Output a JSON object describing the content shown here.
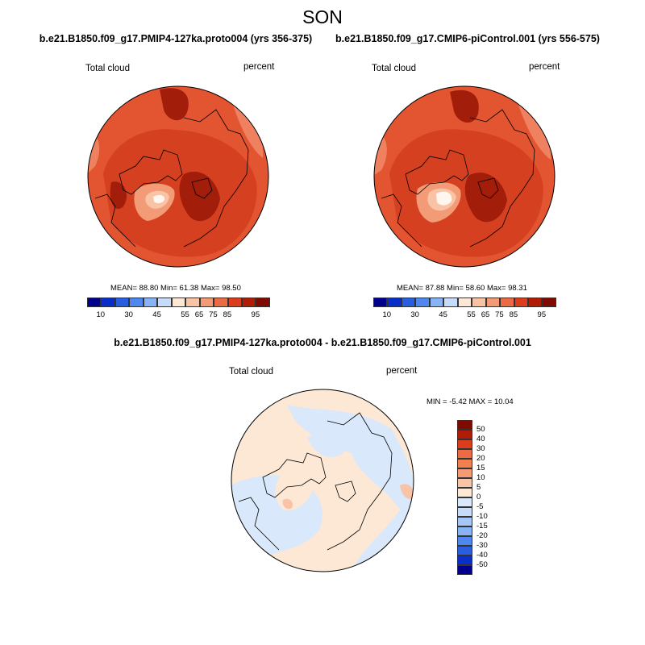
{
  "figure": {
    "season": "SON",
    "var_label": "Total cloud",
    "units": "percent"
  },
  "panel_left": {
    "title": "b.e21.B1850.f09_g17.PMIP4-127ka.proto004 (yrs 356-375)",
    "stats": "MEAN=  88.80  Min=  61.38  Max=  98.50"
  },
  "panel_right": {
    "title": "b.e21.B1850.f09_g17.CMIP6-piControl.001 (yrs 556-575)",
    "stats": "MEAN=  87.88  Min=  58.60  Max=  98.31"
  },
  "panel_diff": {
    "title": "b.e21.B1850.f09_g17.PMIP4-127ka.proto004 - b.e21.B1850.f09_g17.CMIP6-piControl.001",
    "stats": "MIN =  -5.42 MAX =  10.04"
  },
  "colorbar_abs": {
    "colors": [
      "#00008c",
      "#0a2fc8",
      "#2a5ee0",
      "#4f87ee",
      "#88b4f5",
      "#c6dcfa",
      "#fde8d6",
      "#f9c4a6",
      "#f39b76",
      "#ea6b44",
      "#dc3d1c",
      "#b01c06",
      "#7e0a00"
    ],
    "labels": [
      "10",
      "30",
      "45",
      "55",
      "65",
      "75",
      "85",
      "95"
    ]
  },
  "colorbar_diff": {
    "colors": [
      "#7e0a00",
      "#b01c06",
      "#dc3d1c",
      "#ea6b44",
      "#f0814f",
      "#f39b76",
      "#f9c4a6",
      "#fde8d6",
      "#d9e8fb",
      "#c6dcfa",
      "#a6c6f7",
      "#88b4f5",
      "#4f87ee",
      "#2a5ee0",
      "#0a2fc8",
      "#00008c"
    ],
    "labels": [
      "50",
      "40",
      "30",
      "20",
      "15",
      "10",
      "5",
      "0",
      "-5",
      "-10",
      "-15",
      "-20",
      "-30",
      "-40",
      "-50"
    ]
  },
  "map_colors": {
    "deep": "#a21d0a",
    "mid": "#d54020",
    "base": "#e25530",
    "light": "#ef8060",
    "pale": "#f9c4a6",
    "white": "#fff6f0",
    "diff_pos": "#fde8d6",
    "diff_neg": "#d9e8fb",
    "diff_strong": "#f9c4a6"
  }
}
